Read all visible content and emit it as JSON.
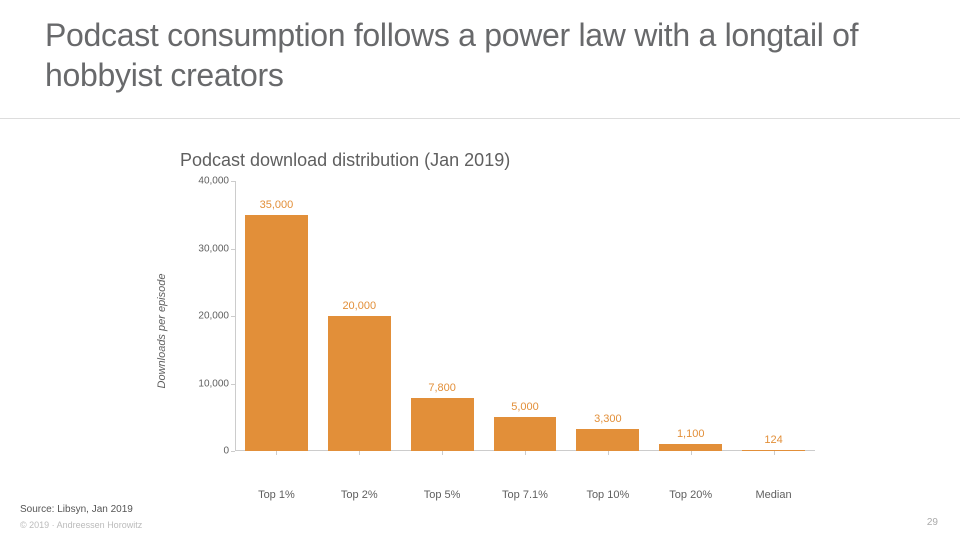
{
  "title": "Podcast consumption follows a power law with a longtail of hobbyist creators",
  "chart": {
    "type": "bar",
    "title": "Podcast download distribution (Jan 2019)",
    "ylabel": "Downloads per episode",
    "ylim": [
      0,
      40000
    ],
    "ytick_step": 10000,
    "yticks": [
      {
        "value": 0,
        "label": "0"
      },
      {
        "value": 10000,
        "label": "10,000"
      },
      {
        "value": 20000,
        "label": "20,000"
      },
      {
        "value": 30000,
        "label": "30,000"
      },
      {
        "value": 40000,
        "label": "40,000"
      }
    ],
    "categories": [
      "Top 1%",
      "Top 2%",
      "Top 5%",
      "Top 7.1%",
      "Top 10%",
      "Top 20%",
      "Median"
    ],
    "values": [
      35000,
      20000,
      7800,
      5000,
      3300,
      1100,
      124
    ],
    "value_labels": [
      "35,000",
      "20,000",
      "7,800",
      "5,000",
      "3,300",
      "1,100",
      "124"
    ],
    "bar_color": "#e28f39",
    "label_color": "#e28f39",
    "axis_color": "#cccccc",
    "axis_label_color": "#5f5f5f",
    "title_fontsize": 18,
    "tick_fontsize": 10,
    "label_fontsize": 11,
    "bar_width_ratio": 0.76,
    "background_color": "#ffffff"
  },
  "footer": {
    "source": "Source: Libsyn, Jan 2019",
    "copyright": "© 2019 · Andreessen Horowitz",
    "page": "29"
  }
}
